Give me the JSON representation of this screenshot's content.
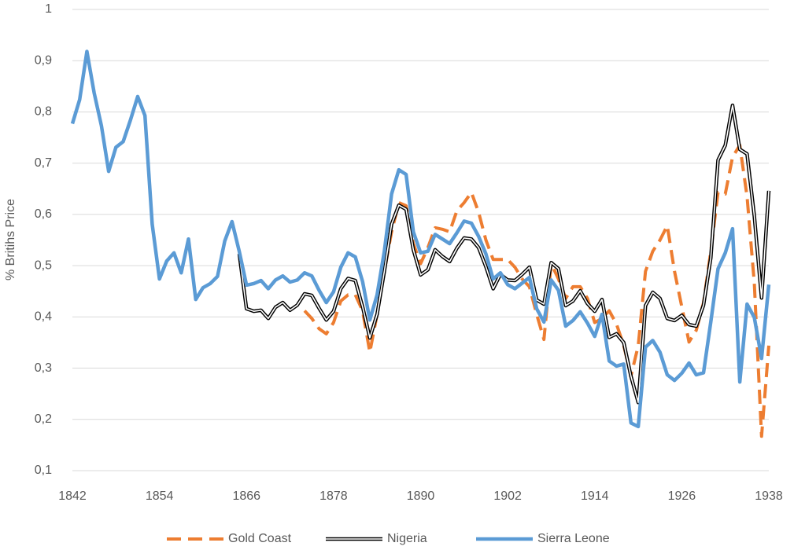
{
  "chart_data": {
    "type": "line",
    "y_label": "% Britihs Price",
    "xlim": [
      1842,
      1938
    ],
    "xticks": [
      1842,
      1854,
      1866,
      1878,
      1890,
      1902,
      1914,
      1926,
      1938
    ],
    "ylim": [
      0.1,
      1
    ],
    "yticks": [
      {
        "value": 0.1,
        "label": "0,1"
      },
      {
        "value": 0.2,
        "label": "0,2"
      },
      {
        "value": 0.3,
        "label": "0,3"
      },
      {
        "value": 0.4,
        "label": "0,4"
      },
      {
        "value": 0.5,
        "label": "0,5"
      },
      {
        "value": 0.6,
        "label": "0,6"
      },
      {
        "value": 0.7,
        "label": "0,7"
      },
      {
        "value": 0.8,
        "label": "0,8"
      },
      {
        "value": 0.9,
        "label": "0,9"
      },
      1
    ],
    "grid": true,
    "legend": "bottom",
    "x": [
      1842,
      1843,
      1844,
      1845,
      1846,
      1847,
      1848,
      1849,
      1850,
      1851,
      1852,
      1853,
      1854,
      1855,
      1856,
      1857,
      1858,
      1859,
      1860,
      1861,
      1862,
      1863,
      1864,
      1865,
      1866,
      1867,
      1868,
      1869,
      1870,
      1871,
      1872,
      1873,
      1874,
      1875,
      1876,
      1877,
      1878,
      1879,
      1880,
      1881,
      1882,
      1883,
      1884,
      1885,
      1886,
      1887,
      1888,
      1889,
      1890,
      1891,
      1892,
      1893,
      1894,
      1895,
      1896,
      1897,
      1898,
      1899,
      1900,
      1901,
      1902,
      1903,
      1904,
      1905,
      1906,
      1907,
      1908,
      1909,
      1910,
      1911,
      1912,
      1913,
      1914,
      1915,
      1916,
      1917,
      1918,
      1919,
      1920,
      1921,
      1922,
      1923,
      1924,
      1925,
      1926,
      1927,
      1928,
      1929,
      1930,
      1931,
      1932,
      1933,
      1934,
      1935,
      1936,
      1937,
      1938
    ],
    "series": [
      {
        "name": "Gold Coast",
        "color": "#ED7D31",
        "style": "dashed",
        "values": [
          null,
          null,
          null,
          null,
          null,
          null,
          null,
          null,
          null,
          null,
          null,
          null,
          null,
          null,
          null,
          null,
          null,
          null,
          null,
          null,
          null,
          null,
          null,
          null,
          null,
          null,
          null,
          null,
          null,
          null,
          null,
          null,
          0.412,
          0.397,
          0.377,
          0.367,
          0.389,
          0.431,
          0.443,
          0.443,
          0.412,
          0.331,
          0.405,
          0.489,
          0.566,
          0.623,
          0.617,
          0.543,
          0.504,
          0.535,
          0.574,
          0.571,
          0.566,
          0.607,
          0.623,
          0.643,
          0.604,
          0.55,
          0.512,
          0.512,
          0.512,
          0.497,
          0.474,
          0.459,
          0.405,
          0.356,
          0.504,
          0.474,
          0.436,
          0.459,
          0.459,
          0.436,
          0.389,
          0.397,
          0.412,
          0.386,
          0.344,
          0.285,
          0.344,
          0.489,
          0.528,
          0.55,
          0.578,
          0.489,
          0.42,
          0.351,
          0.374,
          0.428,
          0.528,
          0.643,
          0.64,
          0.712,
          0.735,
          0.635,
          0.466,
          0.167,
          0.344
        ]
      },
      {
        "name": "Nigeria",
        "color": "#000000",
        "style": "double",
        "values": [
          null,
          null,
          null,
          null,
          null,
          null,
          null,
          null,
          null,
          null,
          null,
          null,
          null,
          null,
          null,
          null,
          null,
          null,
          null,
          null,
          null,
          null,
          null,
          0.523,
          0.416,
          0.411,
          0.413,
          0.397,
          0.419,
          0.428,
          0.413,
          0.423,
          0.445,
          0.442,
          0.417,
          0.394,
          0.411,
          0.455,
          0.475,
          0.471,
          0.42,
          0.359,
          0.405,
          0.489,
          0.581,
          0.618,
          0.61,
          0.531,
          0.482,
          0.492,
          0.531,
          0.518,
          0.508,
          0.534,
          0.554,
          0.552,
          0.535,
          0.498,
          0.455,
          0.483,
          0.472,
          0.471,
          0.483,
          0.497,
          0.433,
          0.425,
          0.506,
          0.494,
          0.422,
          0.431,
          0.451,
          0.426,
          0.411,
          0.434,
          0.36,
          0.367,
          0.35,
          0.284,
          0.233,
          0.422,
          0.448,
          0.436,
          0.397,
          0.393,
          0.403,
          0.385,
          0.382,
          0.423,
          0.515,
          0.706,
          0.735,
          0.813,
          0.727,
          0.718,
          0.597,
          0.437,
          0.646
        ]
      },
      {
        "name": "Sierra Leone",
        "color": "#5B9BD5",
        "style": "solid",
        "values": [
          0.777,
          0.824,
          0.918,
          0.837,
          0.773,
          0.684,
          0.731,
          0.742,
          0.784,
          0.83,
          0.793,
          0.581,
          0.474,
          0.509,
          0.525,
          0.486,
          0.552,
          0.434,
          0.457,
          0.465,
          0.479,
          0.548,
          0.586,
          0.528,
          0.462,
          0.465,
          0.471,
          0.455,
          0.472,
          0.48,
          0.468,
          0.472,
          0.486,
          0.48,
          0.452,
          0.428,
          0.449,
          0.497,
          0.525,
          0.517,
          0.469,
          0.394,
          0.443,
          0.528,
          0.64,
          0.687,
          0.678,
          0.566,
          0.525,
          0.528,
          0.561,
          0.552,
          0.543,
          0.564,
          0.587,
          0.583,
          0.557,
          0.523,
          0.474,
          0.486,
          0.463,
          0.455,
          0.466,
          0.477,
          0.416,
          0.39,
          0.472,
          0.452,
          0.382,
          0.393,
          0.41,
          0.388,
          0.362,
          0.405,
          0.314,
          0.304,
          0.308,
          0.193,
          0.186,
          0.341,
          0.354,
          0.331,
          0.287,
          0.276,
          0.29,
          0.31,
          0.287,
          0.291,
          0.39,
          0.494,
          0.525,
          0.572,
          0.273,
          0.425,
          0.399,
          0.319,
          0.463
        ]
      }
    ]
  }
}
